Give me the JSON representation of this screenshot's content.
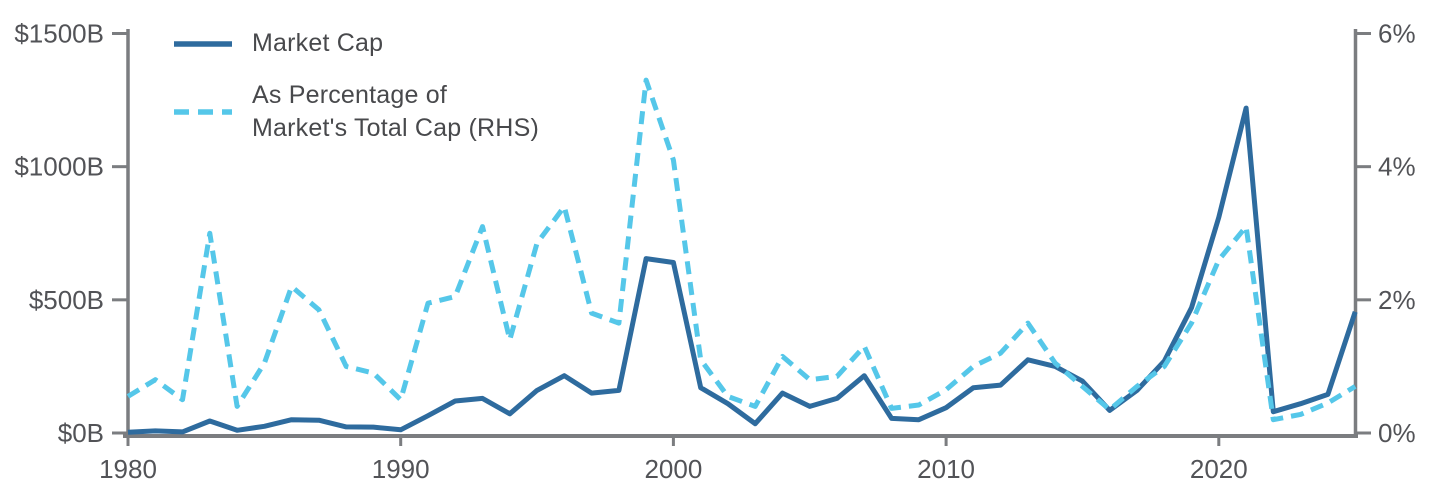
{
  "chart_data": {
    "type": "line",
    "x": [
      1980,
      1981,
      1982,
      1983,
      1984,
      1985,
      1986,
      1987,
      1988,
      1989,
      1990,
      1991,
      1992,
      1993,
      1994,
      1995,
      1996,
      1997,
      1998,
      1999,
      2000,
      2001,
      2002,
      2003,
      2004,
      2005,
      2006,
      2007,
      2008,
      2009,
      2010,
      2011,
      2012,
      2013,
      2014,
      2015,
      2016,
      2017,
      2018,
      2019,
      2020,
      2021,
      2022,
      2023,
      2024,
      2025
    ],
    "series": [
      {
        "name": "Market Cap",
        "axis": "left",
        "style": "solid",
        "color": "#2e6b9e",
        "unit": "$B",
        "values": [
          3,
          8,
          4,
          45,
          10,
          25,
          50,
          48,
          23,
          22,
          12,
          65,
          120,
          130,
          72,
          160,
          215,
          150,
          160,
          655,
          640,
          170,
          110,
          35,
          150,
          100,
          130,
          215,
          55,
          50,
          95,
          170,
          180,
          275,
          250,
          195,
          85,
          160,
          270,
          470,
          810,
          1220,
          80,
          110,
          145,
          455
        ]
      },
      {
        "name": "As Percentage of Market's Total Cap (RHS)",
        "axis": "right",
        "style": "dashed",
        "color": "#55c7e9",
        "unit": "%",
        "values": [
          0.55,
          0.8,
          0.5,
          3.0,
          0.4,
          1.05,
          2.2,
          1.85,
          1.0,
          0.9,
          0.5,
          1.95,
          2.05,
          3.1,
          1.4,
          2.85,
          3.4,
          1.8,
          1.65,
          5.3,
          4.1,
          1.1,
          0.55,
          0.4,
          1.15,
          0.8,
          0.85,
          1.3,
          0.37,
          0.42,
          0.65,
          1.0,
          1.2,
          1.65,
          1.05,
          0.7,
          0.35,
          0.7,
          1.0,
          1.65,
          2.6,
          3.1,
          0.2,
          0.28,
          0.45,
          0.7
        ]
      }
    ],
    "left_axis": {
      "range": [
        0,
        1500
      ],
      "ticks": [
        {
          "value": 0,
          "label": "$0B"
        },
        {
          "value": 500,
          "label": "$500B"
        },
        {
          "value": 1000,
          "label": "$1000B"
        },
        {
          "value": 1500,
          "label": "$1500B"
        }
      ]
    },
    "right_axis": {
      "range": [
        0,
        6
      ],
      "ticks": [
        {
          "value": 0,
          "label": "0%"
        },
        {
          "value": 2,
          "label": "2%"
        },
        {
          "value": 4,
          "label": "4%"
        },
        {
          "value": 6,
          "label": "6%"
        }
      ]
    },
    "x_axis": {
      "range": [
        1980,
        2025
      ],
      "ticks": [
        {
          "value": 1980,
          "label": "1980"
        },
        {
          "value": 1990,
          "label": "1990"
        },
        {
          "value": 2000,
          "label": "2000"
        },
        {
          "value": 2010,
          "label": "2010"
        },
        {
          "value": 2020,
          "label": "2020"
        }
      ]
    },
    "grid": false,
    "legend_position": "top-left"
  },
  "legend": {
    "item1_label": "Market Cap",
    "item2_label": "As Percentage of\nMarket's Total Cap (RHS)"
  },
  "colors": {
    "market_cap_line": "#2e6b9e",
    "percentage_line": "#55c7e9",
    "axis": "#7b7d80",
    "tick_text": "#525357",
    "legend_text": "#48494c",
    "background": "#ffffff"
  }
}
